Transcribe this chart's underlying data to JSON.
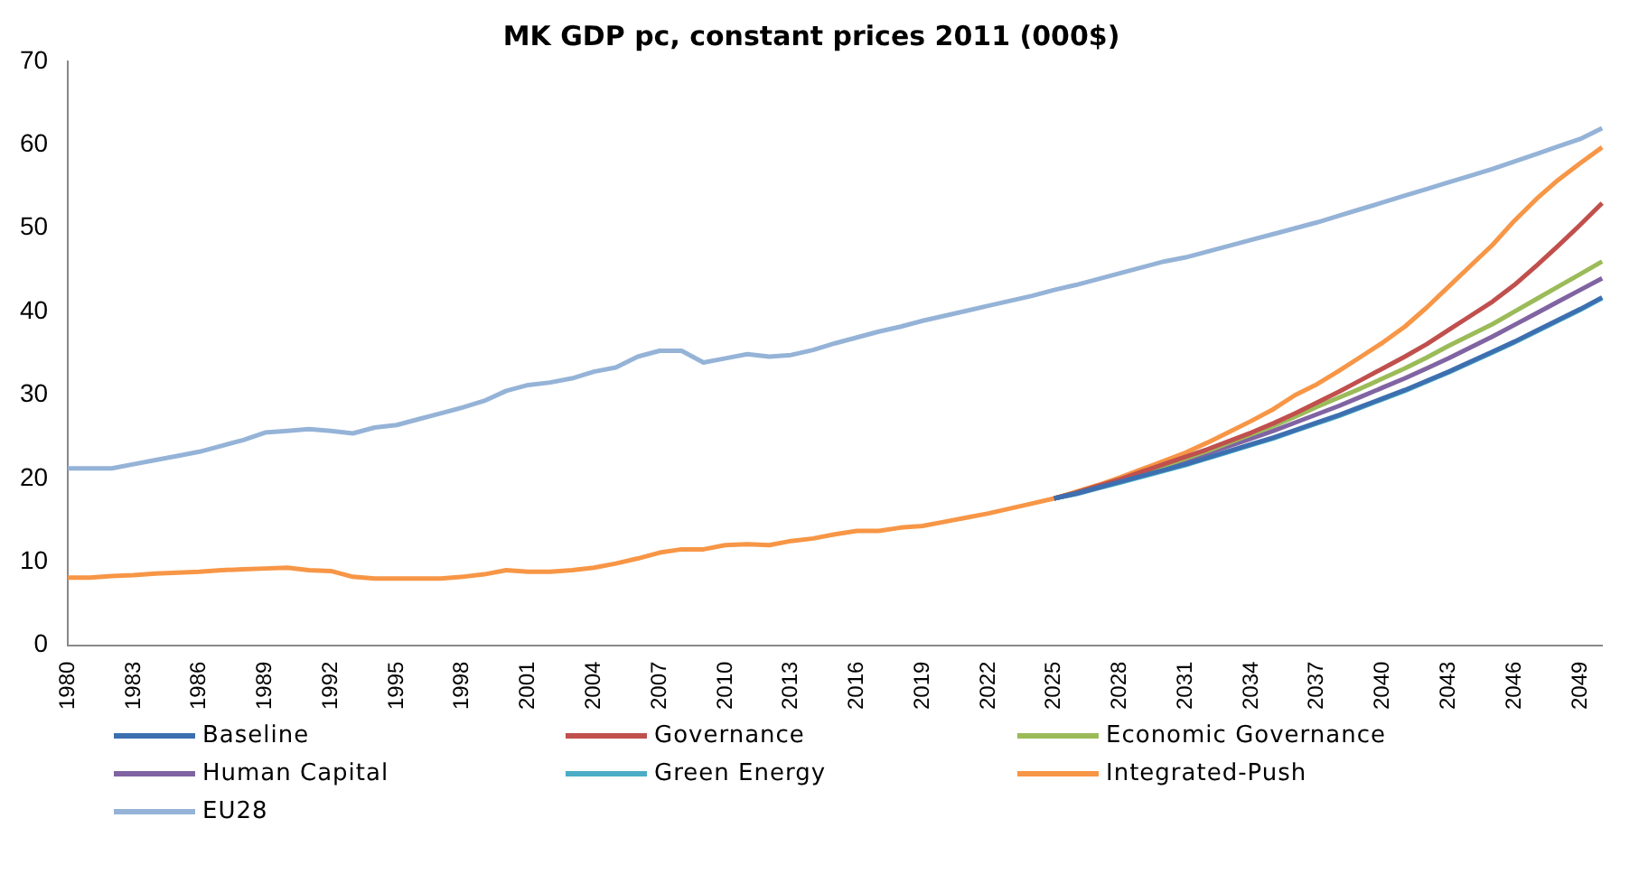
{
  "chart_data": {
    "type": "line",
    "title": "MK GDP pc, constant prices 2011 (000$)",
    "categories": [
      "1980",
      null,
      null,
      "1983",
      null,
      null,
      "1986",
      null,
      null,
      "1989",
      null,
      null,
      "1992",
      null,
      null,
      "1995",
      null,
      null,
      "1998",
      null,
      null,
      "2001",
      null,
      null,
      "2004",
      null,
      null,
      "2007",
      null,
      null,
      "2010",
      null,
      null,
      "2013",
      null,
      null,
      "2016",
      null,
      null,
      "2019",
      null,
      null,
      "2022",
      null,
      null,
      "2025",
      null,
      null,
      "2028",
      null,
      null,
      "2031",
      null,
      null,
      "2034",
      null,
      null,
      "2037",
      null,
      null,
      "2040",
      null,
      null,
      "2043",
      null,
      null,
      "2046",
      null,
      null,
      "2049",
      null
    ],
    "ylim": [
      0,
      70
    ],
    "yticks": [
      0,
      10,
      20,
      30,
      40,
      50,
      60,
      70
    ],
    "grid": false,
    "legend": "bottom",
    "marker": "none",
    "line_style": "solid",
    "series": [
      {
        "name": "Baseline",
        "color": "#3d6fb0",
        "values": [
          null,
          null,
          null,
          null,
          null,
          null,
          null,
          null,
          null,
          null,
          null,
          null,
          null,
          null,
          null,
          null,
          null,
          null,
          null,
          null,
          null,
          null,
          null,
          null,
          null,
          null,
          null,
          null,
          null,
          null,
          null,
          null,
          null,
          null,
          null,
          null,
          null,
          null,
          null,
          null,
          null,
          null,
          null,
          null,
          null,
          17.6,
          18.2,
          18.9,
          19.6,
          20.3,
          21.0,
          21.7,
          22.5,
          23.3,
          24.1,
          24.9,
          25.8,
          26.7,
          27.6,
          28.6,
          29.6,
          30.6,
          31.7,
          32.8,
          34.0,
          35.2,
          36.4,
          37.7,
          39.0,
          40.3,
          41.7
        ]
      },
      {
        "name": "Governance",
        "color": "#c0504d",
        "values": [
          null,
          null,
          null,
          null,
          null,
          null,
          null,
          null,
          null,
          null,
          null,
          null,
          null,
          null,
          null,
          null,
          null,
          null,
          null,
          null,
          null,
          null,
          null,
          null,
          null,
          null,
          null,
          null,
          null,
          null,
          null,
          null,
          null,
          null,
          null,
          null,
          null,
          null,
          null,
          null,
          null,
          null,
          null,
          null,
          null,
          17.6,
          18.3,
          19.1,
          19.9,
          20.8,
          21.7,
          22.6,
          23.5,
          24.5,
          25.5,
          26.6,
          27.8,
          29.1,
          30.4,
          31.8,
          33.2,
          34.6,
          36.1,
          37.8,
          39.5,
          41.2,
          43.2,
          45.5,
          47.9,
          50.4,
          53.0
        ]
      },
      {
        "name": "Economic Governance",
        "color": "#9bbb59",
        "values": [
          null,
          null,
          null,
          null,
          null,
          null,
          null,
          null,
          null,
          null,
          null,
          null,
          null,
          null,
          null,
          null,
          null,
          null,
          null,
          null,
          null,
          null,
          null,
          null,
          null,
          null,
          null,
          null,
          null,
          null,
          null,
          null,
          null,
          null,
          null,
          null,
          null,
          null,
          null,
          null,
          null,
          null,
          null,
          null,
          null,
          17.6,
          18.3,
          19.0,
          19.8,
          20.6,
          21.5,
          22.4,
          23.3,
          24.3,
          25.3,
          26.3,
          27.4,
          28.6,
          29.7,
          30.8,
          32.0,
          33.2,
          34.5,
          35.9,
          37.2,
          38.5,
          40.0,
          41.5,
          43.0,
          44.5,
          46.0
        ]
      },
      {
        "name": "Human Capital",
        "color": "#8064a2",
        "values": [
          null,
          null,
          null,
          null,
          null,
          null,
          null,
          null,
          null,
          null,
          null,
          null,
          null,
          null,
          null,
          null,
          null,
          null,
          null,
          null,
          null,
          null,
          null,
          null,
          null,
          null,
          null,
          null,
          null,
          null,
          null,
          null,
          null,
          null,
          null,
          null,
          null,
          null,
          null,
          null,
          null,
          null,
          null,
          null,
          null,
          17.6,
          18.2,
          18.9,
          19.7,
          20.5,
          21.3,
          22.1,
          23.0,
          23.9,
          24.8,
          25.7,
          26.7,
          27.7,
          28.7,
          29.8,
          30.9,
          32.0,
          33.2,
          34.4,
          35.7,
          37.0,
          38.4,
          39.8,
          41.2,
          42.6,
          44.0
        ]
      },
      {
        "name": "Green Energy",
        "color": "#4bacc6",
        "values": [
          null,
          null,
          null,
          null,
          null,
          null,
          null,
          null,
          null,
          null,
          null,
          null,
          null,
          null,
          null,
          null,
          null,
          null,
          null,
          null,
          null,
          null,
          null,
          null,
          null,
          null,
          null,
          null,
          null,
          null,
          null,
          null,
          null,
          null,
          null,
          null,
          null,
          null,
          null,
          null,
          null,
          null,
          null,
          null,
          null,
          17.6,
          18.1,
          18.8,
          19.5,
          20.2,
          20.9,
          21.6,
          22.4,
          23.2,
          24.0,
          24.8,
          25.7,
          26.6,
          27.5,
          28.5,
          29.5,
          30.5,
          31.6,
          32.7,
          33.9,
          35.1,
          36.3,
          37.6,
          38.9,
          40.2,
          41.6
        ]
      },
      {
        "name": "Integrated-Push",
        "color": "#f79646",
        "values": [
          8.1,
          8.1,
          8.3,
          8.4,
          8.6,
          8.7,
          8.8,
          9.0,
          9.1,
          9.2,
          9.3,
          9.0,
          8.9,
          8.2,
          8.0,
          8.0,
          8.0,
          8.0,
          8.2,
          8.5,
          9.0,
          8.8,
          8.8,
          9.0,
          9.3,
          9.8,
          10.4,
          11.1,
          11.5,
          11.5,
          12.0,
          12.1,
          12.0,
          12.5,
          12.8,
          13.3,
          13.7,
          13.7,
          14.1,
          14.3,
          14.8,
          15.3,
          15.8,
          16.4,
          17.0,
          17.6,
          18.4,
          19.2,
          20.1,
          21.1,
          22.1,
          23.1,
          24.3,
          25.6,
          26.9,
          28.3,
          30.0,
          31.3,
          32.9,
          34.6,
          36.3,
          38.2,
          40.5,
          43.0,
          45.5,
          48.0,
          50.9,
          53.5,
          55.8,
          57.8,
          59.7
        ]
      },
      {
        "name": "EU28",
        "color": "#95b3d7",
        "values": [
          21.2,
          21.2,
          21.2,
          21.7,
          22.2,
          22.7,
          23.2,
          23.9,
          24.6,
          25.5,
          25.7,
          25.9,
          25.7,
          25.4,
          26.1,
          26.4,
          27.1,
          27.8,
          28.5,
          29.3,
          30.5,
          31.2,
          31.5,
          32.0,
          32.8,
          33.3,
          34.6,
          35.3,
          35.3,
          33.9,
          34.4,
          34.9,
          34.6,
          34.8,
          35.4,
          36.2,
          36.9,
          37.6,
          38.2,
          38.9,
          39.5,
          40.1,
          40.7,
          41.3,
          41.9,
          42.6,
          43.2,
          43.9,
          44.6,
          45.3,
          46.0,
          46.5,
          47.2,
          47.9,
          48.6,
          49.3,
          50.0,
          50.7,
          51.5,
          52.3,
          53.1,
          53.9,
          54.7,
          55.5,
          56.3,
          57.1,
          58.0,
          58.9,
          59.8,
          60.7,
          62.0
        ]
      }
    ]
  }
}
